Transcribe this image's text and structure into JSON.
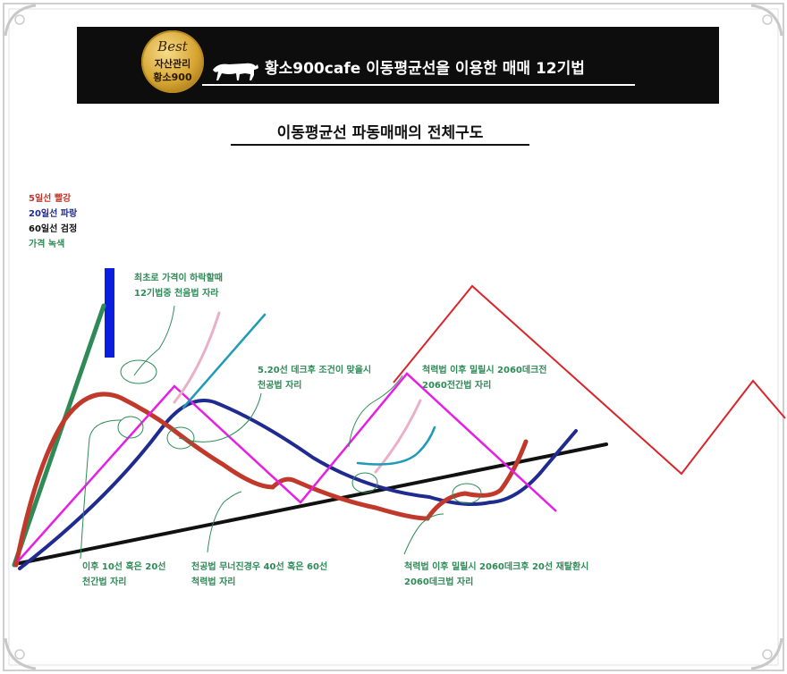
{
  "header": {
    "badge_top": "Best",
    "badge_mid": "자산관리",
    "badge_bottom": "황소900",
    "title": "황소900cafe 이동평균선을 이용한 매매 12기법"
  },
  "diagram_title": "이동평균선 파동매매의 전체구도",
  "legend": [
    {
      "label": "5일선 빨강",
      "color": "#c0392b"
    },
    {
      "label": "20일선 파랑",
      "color": "#1f2b8f"
    },
    {
      "label": "60일선 검정",
      "color": "#111111"
    },
    {
      "label": "가격 녹색",
      "color": "#2e8b57"
    }
  ],
  "annotations": [
    {
      "line1": "최초로 가격이 하락할때",
      "line2": "12기법중 천음법 자라"
    },
    {
      "line1": "5.20선 데크후 조건이 맞을시",
      "line2": "천공법 자리"
    },
    {
      "line1": "척력법 이후 밀릴시 2060데크전",
      "line2": "2060전간법 자리"
    },
    {
      "line1": "이후 10선 혹은 20선",
      "line2": "천간법 자리"
    },
    {
      "line1": "천공법 무너진경우 40선 혹은 60선",
      "line2": "척력법 자리"
    },
    {
      "line1": "척력법 이후 밀릴시 2060데크후 20선 재탈환시",
      "line2": "2060데크법 자리"
    }
  ],
  "colors": {
    "ma5": "#c0392b",
    "ma20": "#1f2b8f",
    "ma60": "#111111",
    "price": "#2e8b57",
    "magenta": "#e61ee6",
    "pink": "#eab0c8",
    "teal": "#1f9bb5",
    "wave": "#d9262a",
    "blue_bar": "#0a1ee0"
  },
  "icons": {
    "bull": "bull-icon"
  }
}
